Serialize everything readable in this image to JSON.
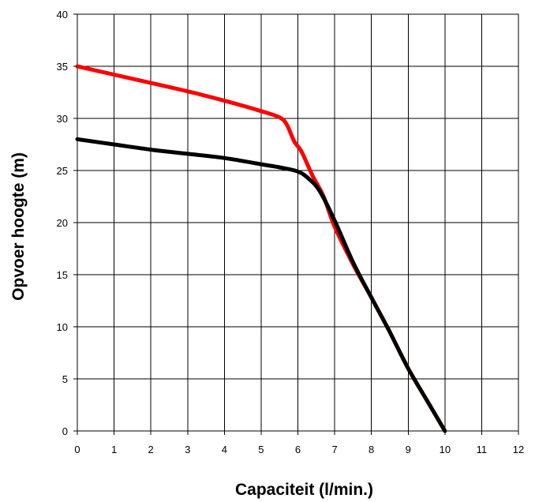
{
  "chart_data": {
    "type": "line",
    "title": "",
    "xlabel": "Capaciteit (l/min.)",
    "ylabel": "Opvoer hoogte (m)",
    "xlim": [
      0,
      12
    ],
    "ylim": [
      0,
      40
    ],
    "x_ticks": [
      "0",
      "1",
      "2",
      "3",
      "4",
      "5",
      "6",
      "7",
      "8",
      "9",
      "10",
      "11",
      "12"
    ],
    "y_ticks": [
      "0",
      "5",
      "10",
      "15",
      "20",
      "25",
      "30",
      "35",
      "40"
    ],
    "grid": true,
    "legend": "none",
    "series": [
      {
        "color": "#ff0000",
        "points": [
          [
            0,
            35
          ],
          [
            1,
            34.2
          ],
          [
            2,
            33.4
          ],
          [
            3,
            32.6
          ],
          [
            4,
            31.7
          ],
          [
            5,
            30.7
          ],
          [
            5.5,
            30.1
          ],
          [
            5.7,
            29.4
          ],
          [
            5.9,
            27.8
          ],
          [
            6.1,
            26.8
          ],
          [
            6.4,
            24.5
          ],
          [
            6.7,
            22.5
          ],
          [
            7,
            19.6
          ],
          [
            7.5,
            16
          ],
          [
            8,
            12.8
          ],
          [
            8.5,
            9.5
          ],
          [
            9,
            6
          ],
          [
            9.5,
            3
          ],
          [
            10,
            0
          ]
        ]
      },
      {
        "color": "#000000",
        "points": [
          [
            0,
            28
          ],
          [
            1,
            27.5
          ],
          [
            2,
            27
          ],
          [
            3,
            26.6
          ],
          [
            4,
            26.2
          ],
          [
            5,
            25.6
          ],
          [
            5.5,
            25.3
          ],
          [
            6,
            24.9
          ],
          [
            6.3,
            24.2
          ],
          [
            6.6,
            23
          ],
          [
            7,
            20.2
          ],
          [
            7.5,
            16.2
          ],
          [
            8,
            12.8
          ],
          [
            8.5,
            9.5
          ],
          [
            9,
            6
          ],
          [
            9.5,
            3
          ],
          [
            10,
            0
          ]
        ]
      }
    ]
  }
}
